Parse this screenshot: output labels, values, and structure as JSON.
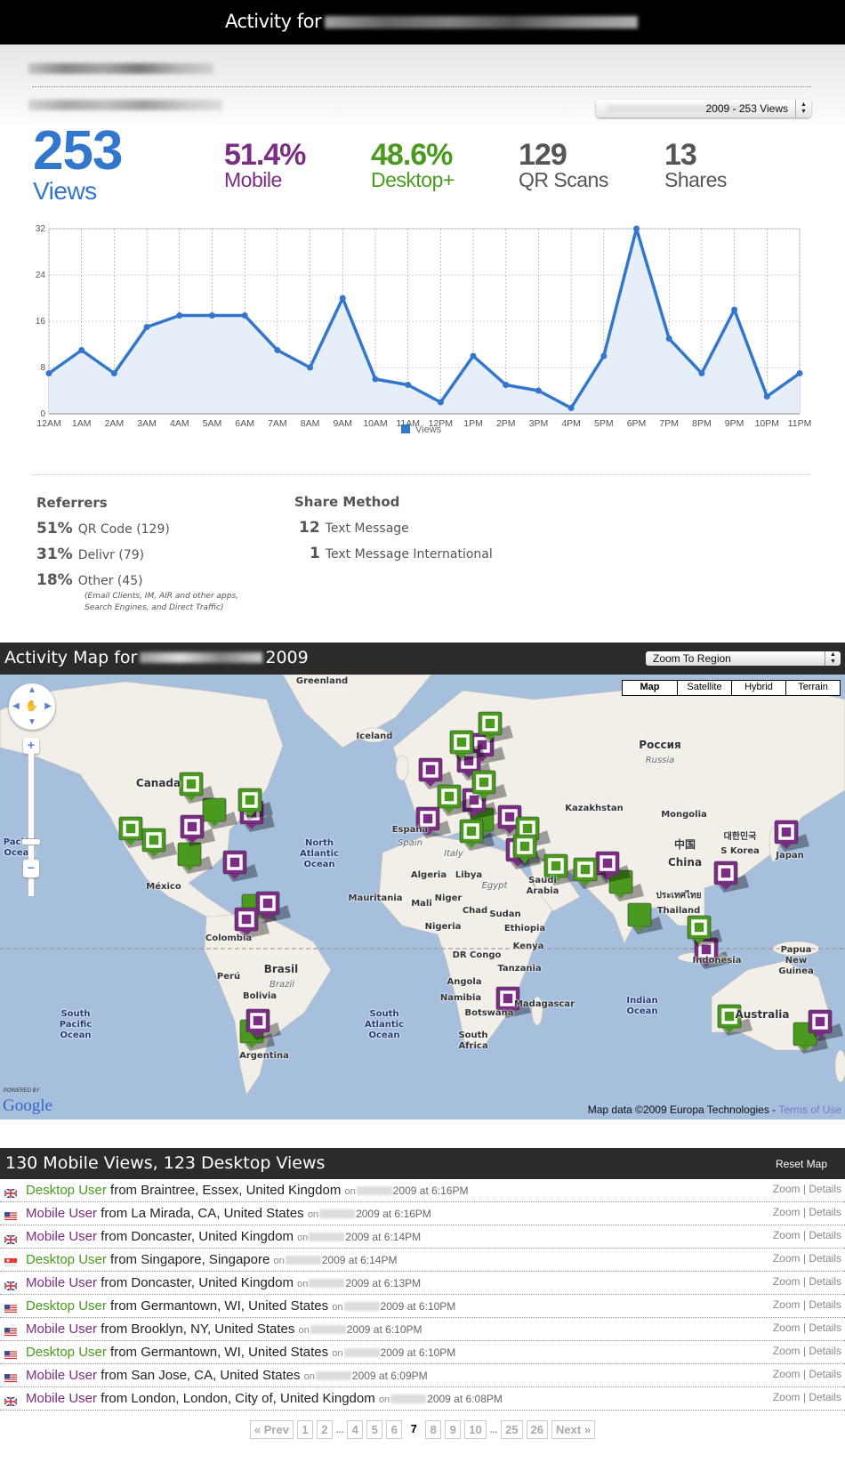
{
  "header": {
    "title_prefix": "Activity for"
  },
  "period_select": {
    "selected": "2009 - 253 Views"
  },
  "stats": {
    "views": {
      "value": "253",
      "label": "Views"
    },
    "mobile": {
      "value": "51.4%",
      "label": "Mobile"
    },
    "desktop": {
      "value": "48.6%",
      "label": "Desktop+"
    },
    "qr": {
      "value": "129",
      "label": "QR Scans"
    },
    "shares": {
      "value": "13",
      "label": "Shares"
    }
  },
  "colors": {
    "views": "#3377cc",
    "mobile": "#7b2d84",
    "desktop": "#4a9a1f",
    "neutral": "#555555",
    "bar": "#2b2b2b"
  },
  "chart_data": {
    "type": "area",
    "categories": [
      "12AM",
      "1AM",
      "2AM",
      "3AM",
      "4AM",
      "5AM",
      "6AM",
      "7AM",
      "8AM",
      "9AM",
      "10AM",
      "11AM",
      "12PM",
      "1PM",
      "2PM",
      "3PM",
      "4PM",
      "5PM",
      "6PM",
      "7PM",
      "8PM",
      "9PM",
      "10PM",
      "11PM"
    ],
    "series": [
      {
        "name": "Views",
        "values": [
          7,
          11,
          7,
          15,
          17,
          17,
          17,
          11,
          8,
          20,
          6,
          5,
          2,
          10,
          5,
          4,
          1,
          10,
          32,
          13,
          7,
          18,
          3,
          7
        ]
      }
    ],
    "yticks": [
      0,
      8,
      16,
      24,
      32
    ],
    "ylim": [
      0,
      32
    ],
    "grid": true,
    "legend": "bottom",
    "color": "#3377cc"
  },
  "referrers": {
    "title": "Referrers",
    "items": [
      {
        "pct": "51%",
        "label": "QR Code (129)"
      },
      {
        "pct": "31%",
        "label": "Delivr (79)"
      },
      {
        "pct": "18%",
        "label": "Other (45)"
      }
    ],
    "note_line1": "(Email Clients, IM, AIR and other apps,",
    "note_line2": "Search Engines, and Direct Traffic)"
  },
  "share_method": {
    "title": "Share Method",
    "items": [
      {
        "count": "12",
        "label": "Text Message"
      },
      {
        "count": "1",
        "label": "Text Message International"
      }
    ]
  },
  "map": {
    "title_prefix": "Activity Map for",
    "title_suffix": "2009",
    "region_select": "Zoom To Region",
    "types": [
      "Map",
      "Satellite",
      "Hybrid",
      "Terrain"
    ],
    "labels": [
      "Greenland",
      "Iceland",
      "Canada",
      "Pacific Ocean",
      "North Atlantic Ocean",
      "México",
      "Colombia",
      "Brasil",
      "Brazil",
      "Perú",
      "Bolivia",
      "Argentina",
      "South Pacific Ocean",
      "South Atlantic Ocean",
      "Россия",
      "Russia",
      "Kazakhstan",
      "Mongolia",
      "中国",
      "China",
      "대한민국",
      "S Korea",
      "Japan",
      "ประเทศไทย",
      "Thailand",
      "Indonesia",
      "Papua New Guinea",
      "Australia",
      "Indian Ocean",
      "Madagascar",
      "Algeria",
      "Libya",
      "Egypt",
      "Saudi Arabia",
      "Mauritania",
      "Mali",
      "Niger",
      "Chad",
      "Sudan",
      "Nigeria",
      "Ethiopia",
      "Kenya",
      "DR Congo",
      "Tanzania",
      "Angola",
      "Namibia",
      "Botswana",
      "South Africa",
      "España",
      "Spain",
      "Italy"
    ],
    "powered_by": "POWERED BY",
    "logo": "Google",
    "attribution": "Map data ©2009 Europa Technologies -",
    "terms": "Terms of Use"
  },
  "list": {
    "title": "130 Mobile Views, 123 Desktop Views",
    "reset": "Reset Map",
    "zoom": "Zoom",
    "details": "Details",
    "rows": [
      {
        "flag": "uk",
        "type": "desktop",
        "user": "Desktop User",
        "from": "from Braintree, Essex, United Kingdom",
        "on": "on",
        "date": "2009 at 6:16PM"
      },
      {
        "flag": "us",
        "type": "mobile",
        "user": "Mobile User",
        "from": "from La Mirada, CA, United States",
        "on": "on",
        "date": "2009 at 6:16PM"
      },
      {
        "flag": "uk",
        "type": "mobile",
        "user": "Mobile User",
        "from": "from Doncaster, United Kingdom",
        "on": "on",
        "date": "2009 at 6:14PM"
      },
      {
        "flag": "sg",
        "type": "desktop",
        "user": "Desktop User",
        "from": "from Singapore, Singapore",
        "on": "on",
        "date": "2009 at 6:14PM"
      },
      {
        "flag": "uk",
        "type": "mobile",
        "user": "Mobile User",
        "from": "from Doncaster, United Kingdom",
        "on": "on",
        "date": "2009 at 6:13PM"
      },
      {
        "flag": "us",
        "type": "desktop",
        "user": "Desktop User",
        "from": "from Germantown, WI, United States",
        "on": "on",
        "date": "2009 at 6:10PM"
      },
      {
        "flag": "us",
        "type": "mobile",
        "user": "Mobile User",
        "from": "from Brooklyn, NY, United States",
        "on": "on",
        "date": "2009 at 6:10PM"
      },
      {
        "flag": "us",
        "type": "desktop",
        "user": "Desktop User",
        "from": "from Germantown, WI, United States",
        "on": "on",
        "date": "2009 at 6:10PM"
      },
      {
        "flag": "us",
        "type": "mobile",
        "user": "Mobile User",
        "from": "from San Jose, CA, United States",
        "on": "on",
        "date": "2009 at 6:09PM"
      },
      {
        "flag": "uk",
        "type": "mobile",
        "user": "Mobile User",
        "from": "from London, London, City of, United Kingdom",
        "on": "on",
        "date": "2009 at 6:08PM"
      }
    ]
  },
  "pagination": {
    "prev": "« Prev",
    "next": "Next »",
    "pages": [
      "1",
      "2",
      "...",
      "4",
      "5",
      "6",
      "7",
      "8",
      "9",
      "10",
      "...",
      "25",
      "26"
    ],
    "current": "7"
  }
}
